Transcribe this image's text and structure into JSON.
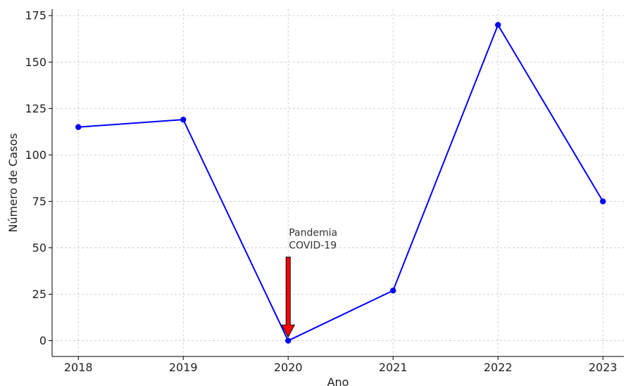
{
  "chart_data": {
    "type": "line",
    "x": [
      2018,
      2019,
      2020,
      2021,
      2022,
      2023
    ],
    "series": [
      {
        "values": [
          115,
          119,
          0,
          27,
          170,
          75
        ],
        "color": "#0000ff",
        "marker": "circle"
      }
    ],
    "xlabel": "Ano",
    "ylabel": "Número de Casos",
    "xticks": [
      "2018",
      "2019",
      "2020",
      "2021",
      "2022",
      "2023"
    ],
    "yticks": [
      "0",
      "25",
      "50",
      "75",
      "100",
      "125",
      "150",
      "175"
    ],
    "xlim": [
      2017.75,
      2023.2
    ],
    "ylim": [
      -8.5,
      178.5
    ],
    "grid": true,
    "grid_style": "dashed",
    "annotations": [
      {
        "text_lines": [
          "Pandemia",
          "COVID-19"
        ],
        "arrow_tip": {
          "x": 2020,
          "y": 2
        },
        "arrow_tail": {
          "x": 2020,
          "y": 45
        },
        "arrow_color": "#ff0000"
      }
    ]
  }
}
